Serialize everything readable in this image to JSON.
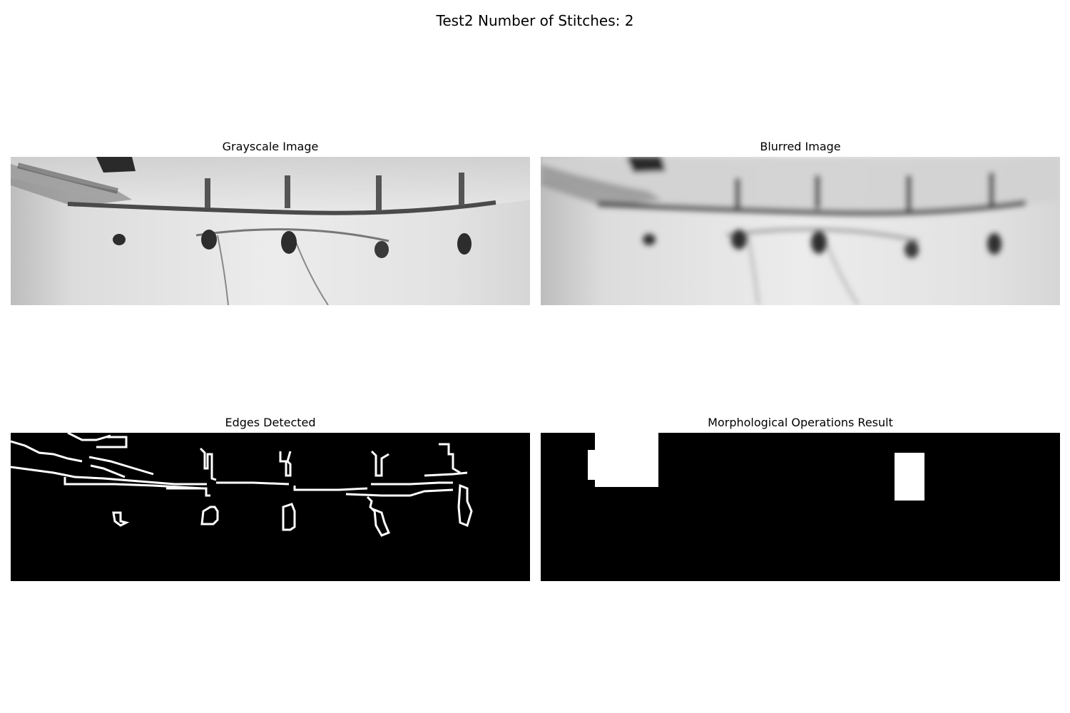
{
  "figure": {
    "title": "Test2 Number of Stitches: 2"
  },
  "panels": [
    {
      "title": "Grayscale Image"
    },
    {
      "title": "Blurred Image"
    },
    {
      "title": "Edges Detected"
    },
    {
      "title": "Morphological Operations Result"
    }
  ]
}
